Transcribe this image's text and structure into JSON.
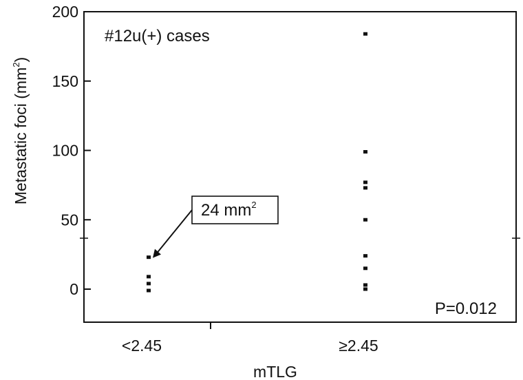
{
  "chart_data": {
    "type": "scatter",
    "annotation_title": "#12u(+) cases",
    "xlabel": "mTLG",
    "ylabel_base": "Metastatic foci (mm",
    "ylabel_sup": "2",
    "ylabel_close": ")",
    "categories": [
      "<2.45",
      "≥2.45"
    ],
    "ylim": [
      -25,
      200
    ],
    "yticks": [
      0,
      50,
      100,
      150,
      200
    ],
    "ytick_labels": [
      "0",
      "50",
      "100",
      "150",
      "200"
    ],
    "points": [
      {
        "x": "<2.45",
        "y": 23
      },
      {
        "x": "<2.45",
        "y": 9
      },
      {
        "x": "<2.45",
        "y": 4
      },
      {
        "x": "<2.45",
        "y": -1
      },
      {
        "x": "≥2.45",
        "y": 184
      },
      {
        "x": "≥2.45",
        "y": 99
      },
      {
        "x": "≥2.45",
        "y": 77
      },
      {
        "x": "≥2.45",
        "y": 73
      },
      {
        "x": "≥2.45",
        "y": 50
      },
      {
        "x": "≥2.45",
        "y": 24
      },
      {
        "x": "≥2.45",
        "y": 15
      },
      {
        "x": "≥2.45",
        "y": 3
      },
      {
        "x": "≥2.45",
        "y": 0
      }
    ],
    "callout": {
      "text": "24 mm",
      "sup": "2",
      "target_category": "<2.45",
      "target_value": 24
    },
    "p_value": "P=0.012",
    "grid": false,
    "colors": {
      "marker": "#111111",
      "axis": "#111111",
      "background": "#ffffff"
    }
  }
}
